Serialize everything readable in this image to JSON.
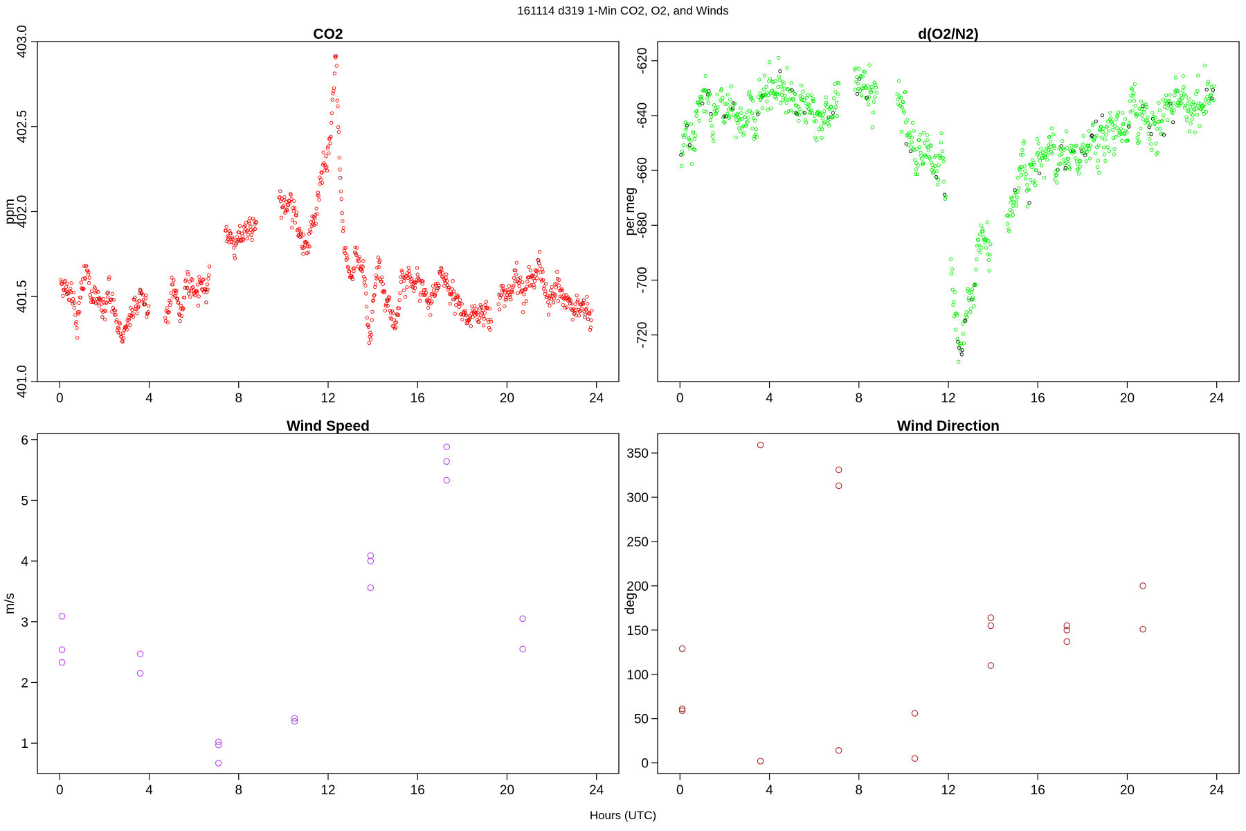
{
  "suptitle": "161114   d319   1-Min CO2, O2, and Winds",
  "xlabel_common": "Hours (UTC)",
  "chart_data": [
    {
      "id": "co2",
      "type": "scatter",
      "title": "CO2",
      "xlabel": "",
      "ylabel": "ppm",
      "xlim": [
        -1,
        25
      ],
      "ylim": [
        401.0,
        403.0
      ],
      "xticks": [
        0,
        4,
        8,
        12,
        16,
        20,
        24
      ],
      "yticks": [
        401.0,
        401.5,
        402.0,
        402.5,
        403.0
      ],
      "ytick_labels": [
        "401.0",
        "401.5",
        "402.0",
        "402.5",
        "403.0"
      ],
      "y_tick_rotation": "vertical",
      "marker": "small open circle",
      "color": "#ff0000",
      "grid": false,
      "legend": "none",
      "note": "1-minute data, roughly 1000 points",
      "trend": [
        [
          0.05,
          401.58
        ],
        [
          0.6,
          401.5
        ],
        [
          0.8,
          401.33
        ],
        [
          1.0,
          401.6
        ],
        [
          1.3,
          401.55
        ],
        [
          1.8,
          401.4
        ],
        [
          2.2,
          401.5
        ],
        [
          2.5,
          401.35
        ],
        [
          2.7,
          401.31
        ],
        [
          3.0,
          401.32
        ],
        [
          3.3,
          401.38
        ],
        [
          3.6,
          401.55
        ],
        [
          3.9,
          401.43
        ],
        [
          4.8,
          401.41
        ],
        [
          5.1,
          401.58
        ],
        [
          5.4,
          401.43
        ],
        [
          5.8,
          401.62
        ],
        [
          6.1,
          401.5
        ],
        [
          6.5,
          401.48
        ],
        [
          7.6,
          401.75
        ],
        [
          8.0,
          401.82
        ],
        [
          8.7,
          401.9
        ],
        [
          9.9,
          401.98
        ],
        [
          10.3,
          402.0
        ],
        [
          10.6,
          401.9
        ],
        [
          10.9,
          401.75
        ],
        [
          11.3,
          401.95
        ],
        [
          11.6,
          402.1
        ],
        [
          11.9,
          402.3
        ],
        [
          12.2,
          402.6
        ],
        [
          12.35,
          402.9
        ],
        [
          12.55,
          402.25
        ],
        [
          12.7,
          401.8
        ],
        [
          13.0,
          401.6
        ],
        [
          13.3,
          401.65
        ],
        [
          13.6,
          401.55
        ],
        [
          13.85,
          401.2
        ],
        [
          14.1,
          401.5
        ],
        [
          14.3,
          401.62
        ],
        [
          14.5,
          401.55
        ],
        [
          14.8,
          401.4
        ],
        [
          15.0,
          401.3
        ],
        [
          15.3,
          401.62
        ],
        [
          15.6,
          401.55
        ],
        [
          16.0,
          401.57
        ],
        [
          16.5,
          401.5
        ],
        [
          17.0,
          401.6
        ],
        [
          17.5,
          401.52
        ],
        [
          18.0,
          401.42
        ],
        [
          18.5,
          401.37
        ],
        [
          19.0,
          401.4
        ],
        [
          19.4,
          401.35
        ],
        [
          19.8,
          401.52
        ],
        [
          20.3,
          401.6
        ],
        [
          20.8,
          401.57
        ],
        [
          21.3,
          401.6
        ],
        [
          21.8,
          401.52
        ],
        [
          22.3,
          401.55
        ],
        [
          22.8,
          401.45
        ],
        [
          23.3,
          401.48
        ],
        [
          23.8,
          401.42
        ]
      ],
      "gaps": [
        [
          4.0,
          4.7
        ],
        [
          6.7,
          7.4
        ],
        [
          8.8,
          9.8
        ],
        [
          19.3,
          19.6
        ]
      ],
      "spread": 0.05
    },
    {
      "id": "o2",
      "type": "scatter",
      "title": "d(O2/N2)",
      "xlabel": "",
      "ylabel": "per meg",
      "xlim": [
        -1,
        25
      ],
      "ylim": [
        -737,
        -613
      ],
      "xticks": [
        0,
        4,
        8,
        12,
        16,
        20,
        24
      ],
      "yticks": [
        -720,
        -700,
        -680,
        -660,
        -640,
        -620
      ],
      "ytick_labels": [
        "-720",
        "-700",
        "-680",
        "-660",
        "-640",
        "-620"
      ],
      "y_tick_rotation": "vertical",
      "marker": "small open circle",
      "color": "#00ee00",
      "accent_color": "#000000",
      "grid": false,
      "legend": "none",
      "note": "1-minute data, roughly 1000 points",
      "trend": [
        [
          0.05,
          -654
        ],
        [
          0.7,
          -642
        ],
        [
          1.0,
          -635
        ],
        [
          1.5,
          -640
        ],
        [
          2.0,
          -635
        ],
        [
          2.6,
          -633
        ],
        [
          3.0,
          -637
        ],
        [
          3.6,
          -632
        ],
        [
          4.0,
          -628
        ],
        [
          4.7,
          -630
        ],
        [
          5.0,
          -635
        ],
        [
          5.5,
          -642
        ],
        [
          6.0,
          -638
        ],
        [
          6.5,
          -633
        ],
        [
          6.9,
          -635
        ],
        [
          7.9,
          -632
        ],
        [
          8.3,
          -635
        ],
        [
          8.7,
          -633
        ],
        [
          9.8,
          -640
        ],
        [
          10.2,
          -648
        ],
        [
          10.6,
          -652
        ],
        [
          11.0,
          -654
        ],
        [
          11.4,
          -660
        ],
        [
          11.8,
          -662
        ],
        [
          12.1,
          -700
        ],
        [
          12.4,
          -712
        ],
        [
          12.7,
          -715
        ],
        [
          13.0,
          -700
        ],
        [
          13.3,
          -690
        ],
        [
          13.6,
          -685
        ],
        [
          13.8,
          -688
        ],
        [
          14.7,
          -672
        ],
        [
          15.0,
          -665
        ],
        [
          15.5,
          -658
        ],
        [
          16.0,
          -658
        ],
        [
          16.5,
          -655
        ],
        [
          17.0,
          -652
        ],
        [
          17.5,
          -656
        ],
        [
          18.0,
          -655
        ],
        [
          18.5,
          -652
        ],
        [
          19.0,
          -648
        ],
        [
          19.5,
          -645
        ],
        [
          20.0,
          -642
        ],
        [
          20.5,
          -640
        ],
        [
          21.0,
          -643
        ],
        [
          21.5,
          -640
        ],
        [
          22.0,
          -642
        ],
        [
          22.5,
          -638
        ],
        [
          23.0,
          -635
        ],
        [
          23.5,
          -630
        ],
        [
          23.9,
          -628
        ]
      ],
      "gaps": [
        [
          1.7,
          1.8
        ],
        [
          7.1,
          7.8
        ],
        [
          8.8,
          9.7
        ],
        [
          11.9,
          12.1
        ],
        [
          13.9,
          14.6
        ]
      ],
      "spread": 5
    },
    {
      "id": "ws",
      "type": "scatter",
      "title": "Wind Speed",
      "xlabel": "",
      "ylabel": "m/s",
      "xlim": [
        -1,
        25
      ],
      "ylim": [
        0.5,
        6.1
      ],
      "xticks": [
        0,
        4,
        8,
        12,
        16,
        20,
        24
      ],
      "yticks": [
        1,
        2,
        3,
        4,
        5,
        6
      ],
      "ytick_labels": [
        "1",
        "2",
        "3",
        "4",
        "5",
        "6"
      ],
      "marker": "open circle",
      "color": "#bb44ee",
      "grid": false,
      "legend": "none",
      "points": [
        [
          0.1,
          3.09
        ],
        [
          0.1,
          2.54
        ],
        [
          0.1,
          2.33
        ],
        [
          3.6,
          2.47
        ],
        [
          3.6,
          2.15
        ],
        [
          7.1,
          1.02
        ],
        [
          7.1,
          0.97
        ],
        [
          7.1,
          0.67
        ],
        [
          10.5,
          1.41
        ],
        [
          10.5,
          1.36
        ],
        [
          13.9,
          4.09
        ],
        [
          13.9,
          4.0
        ],
        [
          13.9,
          3.56
        ],
        [
          17.3,
          5.88
        ],
        [
          17.3,
          5.64
        ],
        [
          17.3,
          5.33
        ],
        [
          20.7,
          3.05
        ],
        [
          20.7,
          2.55
        ]
      ]
    },
    {
      "id": "wd",
      "type": "scatter",
      "title": "Wind Direction",
      "xlabel": "",
      "ylabel": "deg",
      "xlim": [
        -1,
        25
      ],
      "ylim": [
        -12,
        372
      ],
      "xticks": [
        0,
        4,
        8,
        12,
        16,
        20,
        24
      ],
      "yticks": [
        0,
        50,
        100,
        150,
        200,
        250,
        300,
        350
      ],
      "ytick_labels": [
        "0",
        "50",
        "100",
        "150",
        "200",
        "250",
        "300",
        "350"
      ],
      "marker": "open circle",
      "color": "#aa2222",
      "grid": false,
      "legend": "none",
      "points": [
        [
          0.1,
          129
        ],
        [
          0.1,
          61
        ],
        [
          0.1,
          59
        ],
        [
          3.6,
          359
        ],
        [
          3.6,
          2
        ],
        [
          7.1,
          331
        ],
        [
          7.1,
          313
        ],
        [
          7.1,
          14
        ],
        [
          10.5,
          56
        ],
        [
          10.5,
          5
        ],
        [
          13.9,
          164
        ],
        [
          13.9,
          155
        ],
        [
          13.9,
          110
        ],
        [
          17.3,
          155
        ],
        [
          17.3,
          150
        ],
        [
          17.3,
          137
        ],
        [
          20.7,
          200
        ],
        [
          20.7,
          151
        ]
      ]
    }
  ]
}
